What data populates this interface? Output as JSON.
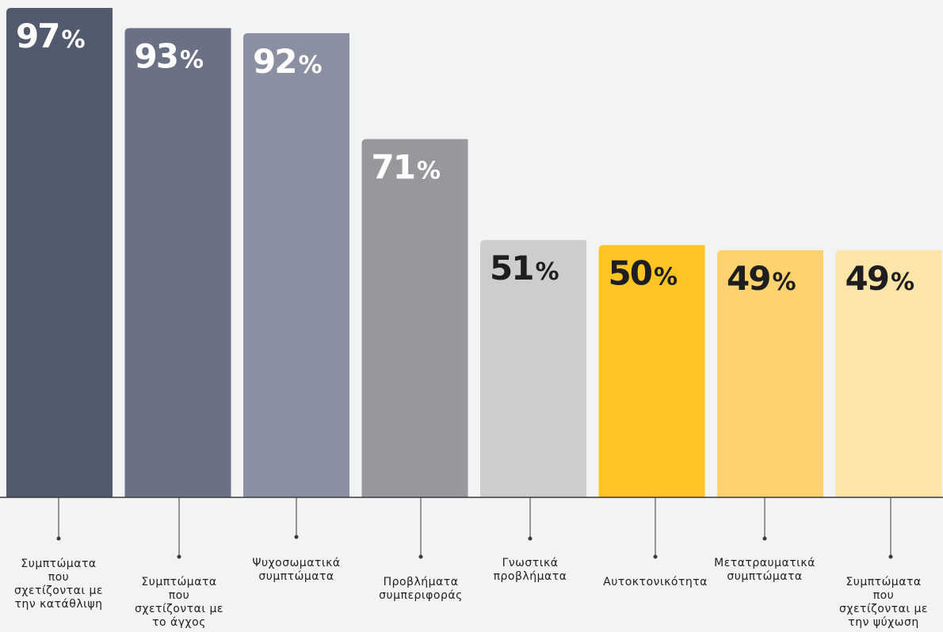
{
  "chart_data": {
    "type": "bar",
    "categories": [
      "Συμπτώματα που σχετίζονται με την κατάθλιψη",
      "Συμπτώματα που σχετίζονται με το άγχος",
      "Ψυχοσωματικά συμπτώματα",
      "Προβλήματα συμπεριφοράς",
      "Γνωστικά προβλήματα",
      "Αυτοκτονικότητα",
      "Μετατραυματικά συμπτώματα",
      "Συμπτώματα που σχετίζονται με την ψύχωση"
    ],
    "label_lines": [
      [
        "Συμπτώματα",
        "που",
        "σχετίζονται με",
        "την κατάθλιψη"
      ],
      [
        "Συμπτώματα",
        "που",
        "σχετίζονται με",
        "το άγχος"
      ],
      [
        "Ψυχοσωματικά",
        "συμπτώματα"
      ],
      [
        "Προβλήματα",
        "συμπεριφοράς"
      ],
      [
        "Γνωστικά",
        "προβλήματα"
      ],
      [
        "Αυτοκτονικότητα"
      ],
      [
        "Μετατραυματικά",
        "συμπτώματα"
      ],
      [
        "Συμπτώματα",
        "που",
        "σχετίζονται με",
        "την ψύχωση"
      ]
    ],
    "values": [
      97,
      93,
      92,
      71,
      51,
      50,
      49,
      49
    ],
    "value_suffix": "%",
    "colors": [
      "#525a6e",
      "#6b7184",
      "#8a90a1",
      "#97989c",
      "#cccdcf",
      "#fec424",
      "#fed26e",
      "#fee4a8"
    ],
    "label_colors": [
      "#ffffff",
      "#ffffff",
      "#ffffff",
      "#ffffff",
      "#1e1e1e",
      "#1e1e1e",
      "#1e1e1e",
      "#1e1e1e"
    ],
    "axis_color": "#3a3a3a",
    "title": "",
    "xlabel": "",
    "ylabel": "",
    "ylim": [
      0,
      100
    ],
    "grid": false,
    "legend": "none"
  }
}
